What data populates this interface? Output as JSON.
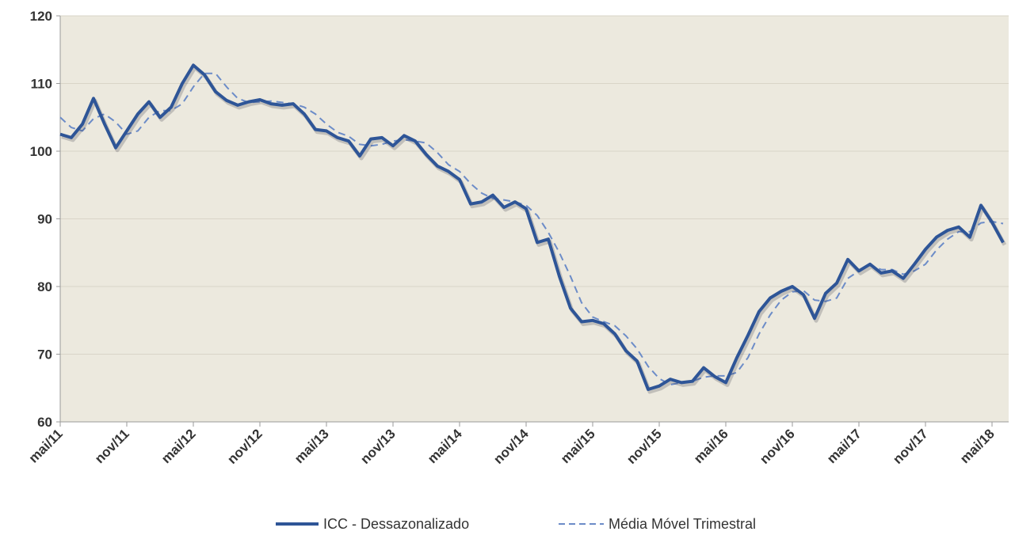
{
  "chart_data": {
    "type": "line",
    "title": "",
    "xlabel": "",
    "ylabel": "",
    "ylim": [
      60,
      120
    ],
    "yticks": [
      60,
      70,
      80,
      90,
      100,
      110,
      120
    ],
    "x_tick_labels": [
      "mai/11",
      "nov/11",
      "mai/12",
      "nov/12",
      "mai/13",
      "nov/13",
      "mai/14",
      "nov/14",
      "mai/15",
      "nov/15",
      "mai/16",
      "nov/16",
      "mai/17",
      "nov/17",
      "mai/18"
    ],
    "x_start": "mai/11",
    "x_end": "jun/18",
    "grid": "horizontal",
    "legend_position": "bottom",
    "plot_background": "#ECE9DE",
    "series": [
      {
        "name": "ICC - Dessazonalizado",
        "style": "solid",
        "color": "#2E5597",
        "values": [
          102.5,
          102.0,
          104.0,
          107.8,
          104.0,
          100.5,
          103.0,
          105.5,
          107.3,
          105.0,
          106.5,
          110.0,
          112.7,
          111.3,
          108.8,
          107.5,
          106.8,
          107.3,
          107.6,
          107.0,
          106.8,
          107.0,
          105.5,
          103.2,
          103.0,
          102.0,
          101.5,
          99.3,
          101.8,
          102.0,
          100.8,
          102.3,
          101.5,
          99.5,
          97.8,
          97.0,
          95.8,
          92.2,
          92.5,
          93.5,
          91.7,
          92.5,
          91.5,
          86.5,
          87.0,
          81.5,
          76.8,
          74.8,
          75.0,
          74.5,
          73.0,
          70.5,
          69.0,
          64.8,
          65.3,
          66.3,
          65.8,
          66.0,
          68.0,
          66.7,
          65.8,
          69.5,
          72.8,
          76.3,
          78.3,
          79.3,
          80.0,
          78.8,
          75.3,
          79.0,
          80.5,
          84.0,
          82.3,
          83.3,
          82.0,
          82.3,
          81.2,
          83.3,
          85.5,
          87.3,
          88.3,
          88.8,
          87.3,
          92.0,
          89.5,
          86.5
        ]
      },
      {
        "name": "Média Móvel Trimestral",
        "style": "dashed",
        "color": "#6C8CC8",
        "values": [
          105.0,
          103.5,
          103.0,
          104.8,
          105.5,
          104.3,
          102.5,
          103.0,
          105.0,
          106.0,
          106.0,
          107.0,
          109.5,
          111.5,
          111.5,
          109.5,
          107.8,
          107.2,
          107.3,
          107.4,
          107.2,
          107.0,
          106.5,
          105.5,
          104.0,
          102.8,
          102.2,
          101.0,
          100.8,
          101.0,
          101.5,
          101.7,
          101.5,
          101.2,
          99.8,
          98.0,
          97.0,
          95.2,
          93.8,
          93.0,
          92.8,
          92.5,
          92.0,
          90.5,
          88.0,
          85.0,
          81.5,
          77.6,
          75.5,
          74.8,
          74.2,
          72.7,
          70.8,
          68.2,
          66.4,
          65.5,
          65.8,
          66.0,
          66.6,
          66.8,
          66.8,
          67.3,
          69.5,
          73.0,
          75.8,
          78.0,
          79.2,
          79.4,
          78.0,
          77.8,
          78.3,
          81.2,
          82.3,
          83.2,
          82.5,
          82.5,
          81.8,
          82.3,
          83.3,
          85.4,
          87.0,
          88.1,
          88.1,
          89.4,
          89.6,
          89.3
        ]
      }
    ]
  }
}
